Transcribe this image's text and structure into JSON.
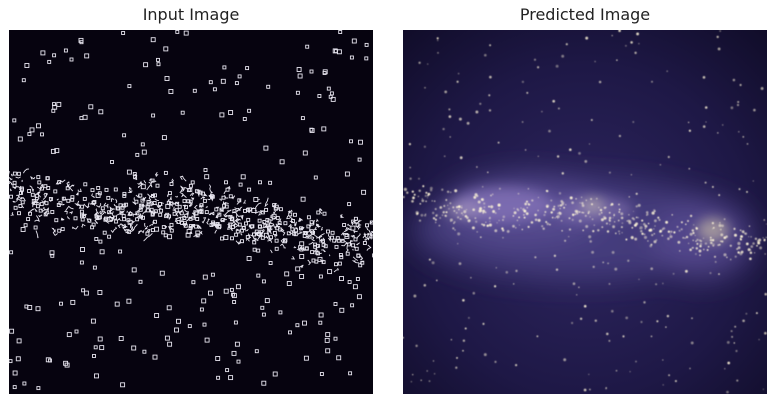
{
  "figure": {
    "panels": [
      {
        "title": "Input Image",
        "image": "sparse white edge-detected star points forming a horizontal galactic band on a near-black background",
        "colors": {
          "background": "#06030f",
          "marks": "#e8e6f0"
        }
      },
      {
        "title": "Predicted Image",
        "image": "reconstructed dark indigo starfield with a diffuse glowing horizontal nebula band and scattered stars",
        "colors": {
          "background": "#1c1640",
          "glow": "#9a86c9",
          "stars": "#fff6d8"
        }
      }
    ]
  }
}
